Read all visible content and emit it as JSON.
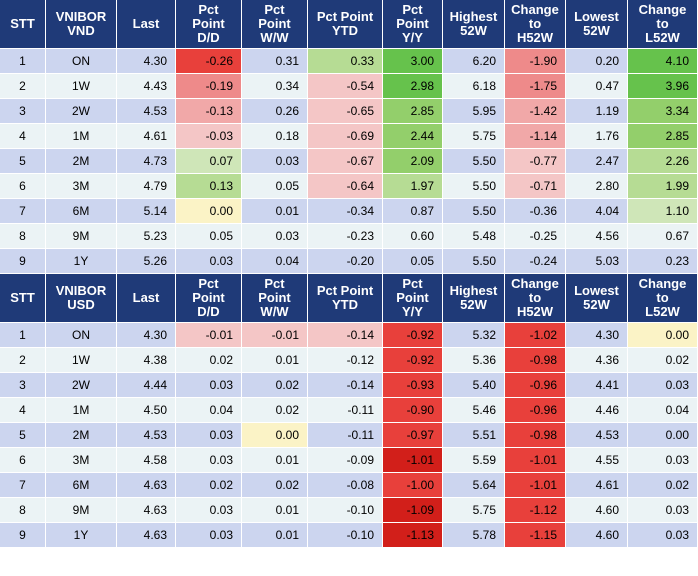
{
  "tables": [
    {
      "headers": [
        [
          "STT"
        ],
        [
          "VNIBOR",
          "VND"
        ],
        [
          "Last"
        ],
        [
          "Pct",
          "Point",
          "D/D"
        ],
        [
          "Pct",
          "Point",
          "W/W"
        ],
        [
          "Pct Point",
          "YTD"
        ],
        [
          "Pct",
          "Point",
          "Y/Y"
        ],
        [
          "Highest",
          "52W"
        ],
        [
          "Change",
          "to",
          "H52W"
        ],
        [
          "Lowest",
          "52W"
        ],
        [
          "Change",
          "to",
          "L52W"
        ]
      ],
      "rows": [
        [
          "1",
          "ON",
          "4.30",
          "-0.26",
          "0.31",
          "0.33",
          "3.00",
          "6.20",
          "-1.90",
          "0.20",
          "4.10"
        ],
        [
          "2",
          "1W",
          "4.43",
          "-0.19",
          "0.34",
          "-0.54",
          "2.98",
          "6.18",
          "-1.75",
          "0.47",
          "3.96"
        ],
        [
          "3",
          "2W",
          "4.53",
          "-0.13",
          "0.26",
          "-0.65",
          "2.85",
          "5.95",
          "-1.42",
          "1.19",
          "3.34"
        ],
        [
          "4",
          "1M",
          "4.61",
          "-0.03",
          "0.18",
          "-0.69",
          "2.44",
          "5.75",
          "-1.14",
          "1.76",
          "2.85"
        ],
        [
          "5",
          "2M",
          "4.73",
          "0.07",
          "0.03",
          "-0.67",
          "2.09",
          "5.50",
          "-0.77",
          "2.47",
          "2.26"
        ],
        [
          "6",
          "3M",
          "4.79",
          "0.13",
          "0.05",
          "-0.64",
          "1.97",
          "5.50",
          "-0.71",
          "2.80",
          "1.99"
        ],
        [
          "7",
          "6M",
          "5.14",
          "0.00",
          "0.01",
          "-0.34",
          "0.87",
          "5.50",
          "-0.36",
          "4.04",
          "1.10"
        ],
        [
          "8",
          "9M",
          "5.23",
          "0.05",
          "0.03",
          "-0.23",
          "0.60",
          "5.48",
          "-0.25",
          "4.56",
          "0.67"
        ],
        [
          "9",
          "1Y",
          "5.26",
          "0.03",
          "0.04",
          "-0.20",
          "0.05",
          "5.50",
          "-0.24",
          "5.03",
          "0.23"
        ]
      ],
      "shades": [
        [
          "",
          "",
          "",
          "neg-strong",
          "",
          "pos-light",
          "pos-strong",
          "",
          "neg-mid",
          "",
          "pos-strong"
        ],
        [
          "",
          "",
          "",
          "neg-mid",
          "",
          "neg-pale",
          "pos-strong",
          "",
          "neg-mid",
          "",
          "pos-strong"
        ],
        [
          "",
          "",
          "",
          "neg-light",
          "",
          "neg-pale",
          "pos-mid",
          "",
          "neg-light",
          "",
          "pos-mid"
        ],
        [
          "",
          "",
          "",
          "neg-pale",
          "",
          "neg-pale",
          "pos-mid",
          "",
          "neg-light",
          "",
          "pos-mid"
        ],
        [
          "",
          "",
          "",
          "pos-pale",
          "",
          "neg-pale",
          "pos-mid",
          "",
          "neg-pale",
          "",
          "pos-light"
        ],
        [
          "",
          "",
          "",
          "pos-light",
          "",
          "neg-pale",
          "pos-light",
          "",
          "neg-pale",
          "",
          "pos-light"
        ],
        [
          "",
          "",
          "",
          "neutral",
          "",
          "",
          "",
          "",
          "",
          "",
          "pos-pale"
        ],
        [
          "",
          "",
          "",
          "",
          "",
          "",
          "",
          "",
          "",
          "",
          ""
        ],
        [
          "",
          "",
          "",
          "",
          "",
          "",
          "",
          "",
          "",
          "",
          ""
        ]
      ]
    },
    {
      "headers": [
        [
          "STT"
        ],
        [
          "VNIBOR",
          "USD"
        ],
        [
          "Last"
        ],
        [
          "Pct",
          "Point",
          "D/D"
        ],
        [
          "Pct",
          "Point",
          "W/W"
        ],
        [
          "Pct Point",
          "YTD"
        ],
        [
          "Pct",
          "Point",
          "Y/Y"
        ],
        [
          "Highest",
          "52W"
        ],
        [
          "Change",
          "to",
          "H52W"
        ],
        [
          "Lowest",
          "52W"
        ],
        [
          "Change",
          "to",
          "L52W"
        ]
      ],
      "rows": [
        [
          "1",
          "ON",
          "4.30",
          "-0.01",
          "-0.01",
          "-0.14",
          "-0.92",
          "5.32",
          "-1.02",
          "4.30",
          "0.00"
        ],
        [
          "2",
          "1W",
          "4.38",
          "0.02",
          "0.01",
          "-0.12",
          "-0.92",
          "5.36",
          "-0.98",
          "4.36",
          "0.02"
        ],
        [
          "3",
          "2W",
          "4.44",
          "0.03",
          "0.02",
          "-0.14",
          "-0.93",
          "5.40",
          "-0.96",
          "4.41",
          "0.03"
        ],
        [
          "4",
          "1M",
          "4.50",
          "0.04",
          "0.02",
          "-0.11",
          "-0.90",
          "5.46",
          "-0.96",
          "4.46",
          "0.04"
        ],
        [
          "5",
          "2M",
          "4.53",
          "0.03",
          "0.00",
          "-0.11",
          "-0.97",
          "5.51",
          "-0.98",
          "4.53",
          "0.00"
        ],
        [
          "6",
          "3M",
          "4.58",
          "0.03",
          "0.01",
          "-0.09",
          "-1.01",
          "5.59",
          "-1.01",
          "4.55",
          "0.03"
        ],
        [
          "7",
          "6M",
          "4.63",
          "0.02",
          "0.02",
          "-0.08",
          "-1.00",
          "5.64",
          "-1.01",
          "4.61",
          "0.02"
        ],
        [
          "8",
          "9M",
          "4.63",
          "0.03",
          "0.01",
          "-0.10",
          "-1.09",
          "5.75",
          "-1.12",
          "4.60",
          "0.03"
        ],
        [
          "9",
          "1Y",
          "4.63",
          "0.03",
          "0.01",
          "-0.10",
          "-1.13",
          "5.78",
          "-1.15",
          "4.60",
          "0.03"
        ]
      ],
      "shades": [
        [
          "",
          "",
          "",
          "neg-pale",
          "neg-pale",
          "neg-pale",
          "neg-strong",
          "",
          "neg-strong",
          "",
          "neutral"
        ],
        [
          "",
          "",
          "",
          "",
          "",
          "",
          "neg-strong",
          "",
          "neg-strong",
          "",
          ""
        ],
        [
          "",
          "",
          "",
          "",
          "",
          "",
          "neg-strong",
          "",
          "neg-strong",
          "",
          ""
        ],
        [
          "",
          "",
          "",
          "",
          "",
          "",
          "neg-strong",
          "",
          "neg-strong",
          "",
          ""
        ],
        [
          "",
          "",
          "",
          "",
          "neutral",
          "",
          "neg-strong",
          "",
          "neg-strong",
          "",
          ""
        ],
        [
          "",
          "",
          "",
          "",
          "",
          "",
          "neg-dark",
          "",
          "neg-strong",
          "",
          ""
        ],
        [
          "",
          "",
          "",
          "",
          "",
          "",
          "neg-strong",
          "",
          "neg-strong",
          "",
          ""
        ],
        [
          "",
          "",
          "",
          "",
          "",
          "",
          "neg-dark",
          "",
          "neg-strong",
          "",
          ""
        ],
        [
          "",
          "",
          "",
          "",
          "",
          "",
          "neg-dark",
          "",
          "neg-strong",
          "",
          ""
        ]
      ]
    }
  ]
}
